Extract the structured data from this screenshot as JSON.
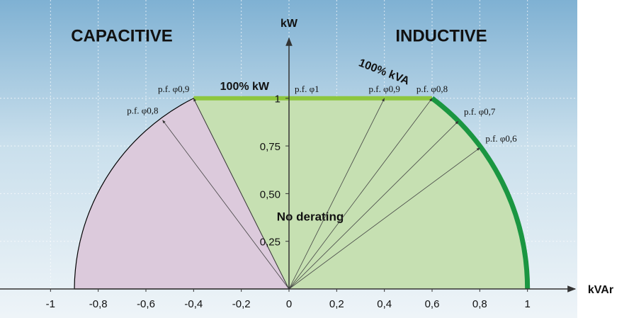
{
  "chart_data": {
    "type": "capability",
    "xlabel": "kVAr",
    "ylabel": "kW",
    "left_region_label": "CAPACITIVE",
    "right_region_label": "INDUCTIVE",
    "center_label": "No derating",
    "xlim": [
      -1.2,
      1.2
    ],
    "ylim": [
      0,
      1.3
    ],
    "xticks": [
      -1,
      {
        "value": -0.8,
        "label": "-0,8"
      },
      {
        "value": -0.6,
        "label": "-0,6"
      },
      {
        "value": -0.4,
        "label": "-0,4"
      },
      {
        "value": -0.2,
        "label": "-0,2"
      },
      0,
      {
        "value": 0.2,
        "label": "0,2"
      },
      {
        "value": 0.4,
        "label": "0,4"
      },
      {
        "value": 0.6,
        "label": "0,6"
      },
      {
        "value": 0.8,
        "label": "0,8"
      },
      1
    ],
    "yticks": [
      {
        "value": 0.25,
        "label": "0,25"
      },
      {
        "value": 0.5,
        "label": "0,50"
      },
      {
        "value": 0.75,
        "label": "0,75"
      },
      1
    ],
    "grid": true,
    "kw_limit": {
      "label": "100% kW",
      "value": 1,
      "from": -0.4,
      "to": 0.6,
      "color": "#8dc63f"
    },
    "kva_limit": {
      "label": "100% kVA",
      "value": 1,
      "color": "#1a9641"
    },
    "capacitive_limit": -0.9,
    "capacitive_color": "#dccadc",
    "inductive_color": "#c6e0b2",
    "rays": [
      {
        "label": "p.f. φ0,9",
        "x": -0.4,
        "y": 1
      },
      {
        "label": "p.f. φ0,8",
        "x": -0.53,
        "y": 0.885
      },
      {
        "label": "p.f. φ1",
        "x": 0,
        "y": 1
      },
      {
        "label": "p.f. φ0,9",
        "x": 0.4,
        "y": 1
      },
      {
        "label": "p.f. φ0,8",
        "x": 0.6,
        "y": 1
      },
      {
        "label": "p.f. φ0,7",
        "x": 0.71,
        "y": 0.88
      },
      {
        "label": "p.f. φ0,6",
        "x": 0.8,
        "y": 0.74
      }
    ]
  }
}
